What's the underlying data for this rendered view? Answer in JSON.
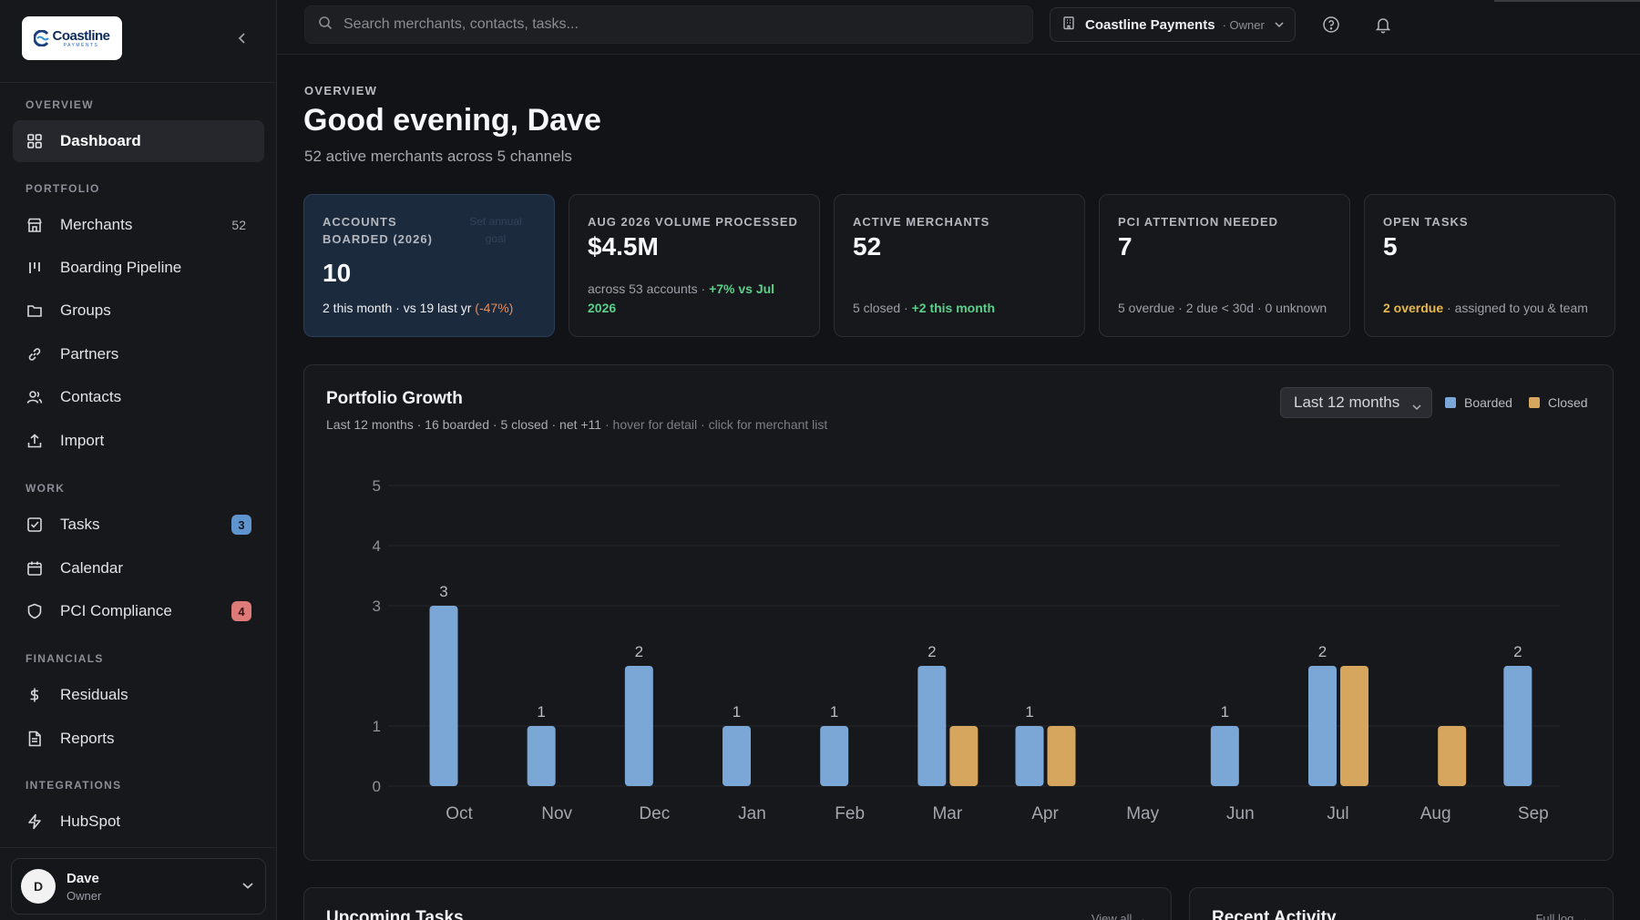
{
  "sidebar": {
    "logo": {
      "text": "Coastline",
      "sub": "PAYMENTS"
    },
    "sections": {
      "overview": "OVERVIEW",
      "portfolio": "PORTFOLIO",
      "work": "WORK",
      "financials": "FINANCIALS",
      "integrations": "INTEGRATIONS"
    },
    "items": {
      "dashboard": {
        "label": "Dashboard",
        "icon": "dashboard-grid-icon"
      },
      "merchants": {
        "label": "Merchants",
        "count": "52",
        "icon": "store-icon"
      },
      "boarding": {
        "label": "Boarding Pipeline",
        "icon": "pipeline-icon"
      },
      "groups": {
        "label": "Groups",
        "icon": "folder-icon"
      },
      "partners": {
        "label": "Partners",
        "icon": "link-icon"
      },
      "contacts": {
        "label": "Contacts",
        "icon": "users-icon"
      },
      "import": {
        "label": "Import",
        "icon": "upload-icon"
      },
      "tasks": {
        "label": "Tasks",
        "badge": "3",
        "icon": "checkbox-icon"
      },
      "calendar": {
        "label": "Calendar",
        "icon": "calendar-icon"
      },
      "pci": {
        "label": "PCI Compliance",
        "badge": "4",
        "icon": "shield-icon"
      },
      "residuals": {
        "label": "Residuals",
        "icon": "dollar-icon"
      },
      "reports": {
        "label": "Reports",
        "icon": "document-icon"
      },
      "hubspot": {
        "label": "HubSpot",
        "icon": "bolt-icon"
      }
    },
    "user": {
      "initial": "D",
      "name": "Dave",
      "role": "Owner"
    }
  },
  "topbar": {
    "search_placeholder": "Search merchants, contacts, tasks...",
    "org": {
      "name": "Coastline Payments",
      "role": "· Owner"
    }
  },
  "header": {
    "eyebrow": "OVERVIEW",
    "greeting": "Good evening, Dave",
    "subtitle": "52 active merchants across 5 channels"
  },
  "kpis": {
    "accounts": {
      "label": "ACCOUNTS BOARDED (2026)",
      "value": "10",
      "ghost": "Set annual goal",
      "sub_a": "2 this month · vs 19 last yr",
      "sub_b": "(-47%)"
    },
    "volume": {
      "label": "AUG 2026 VOLUME PROCESSED",
      "value": "$4.5M",
      "sub_a": "across 53 accounts · ",
      "sub_b": "+7% vs Jul 2026"
    },
    "active": {
      "label": "ACTIVE MERCHANTS",
      "value": "52",
      "sub_a": "5 closed · ",
      "sub_b": "+2 this month"
    },
    "pci": {
      "label": "PCI ATTENTION NEEDED",
      "value": "7",
      "sub_a": "5 overdue · 2 due < 30d · 0 unknown"
    },
    "tasks": {
      "label": "OPEN TASKS",
      "value": "5",
      "sub_a": "2 overdue",
      "sub_b": " · assigned to you & team"
    }
  },
  "chart": {
    "title": "Portfolio Growth",
    "subtitle_main": "Last 12 months · 16 boarded · 5 closed · net +11",
    "subtitle_dim": " · hover for detail · click for merchant list",
    "range": "Last 12 months",
    "legend": {
      "boarded": "Boarded",
      "closed": "Closed"
    },
    "colors": {
      "boarded": "#7ba7d6",
      "closed": "#d6a55e"
    }
  },
  "chart_data": {
    "type": "bar",
    "title": "Portfolio Growth",
    "categories": [
      "Oct",
      "Nov",
      "Dec",
      "Jan",
      "Feb",
      "Mar",
      "Apr",
      "May",
      "Jun",
      "Jul",
      "Aug",
      "Sep"
    ],
    "series": [
      {
        "name": "Boarded",
        "values": [
          3,
          1,
          2,
          1,
          1,
          2,
          1,
          0,
          1,
          2,
          0,
          2
        ]
      },
      {
        "name": "Closed",
        "values": [
          0,
          0,
          0,
          0,
          0,
          1,
          1,
          0,
          0,
          2,
          1,
          0
        ]
      }
    ],
    "ylim": [
      0,
      5
    ],
    "yticks": [
      "0",
      "1",
      "3",
      "4",
      "5"
    ],
    "grid": true,
    "legend_position": "top-right"
  },
  "bottom": {
    "tasks_title": "Upcoming Tasks",
    "tasks_link": "View all →",
    "activity_title": "Recent Activity",
    "activity_link": "Full log →"
  }
}
